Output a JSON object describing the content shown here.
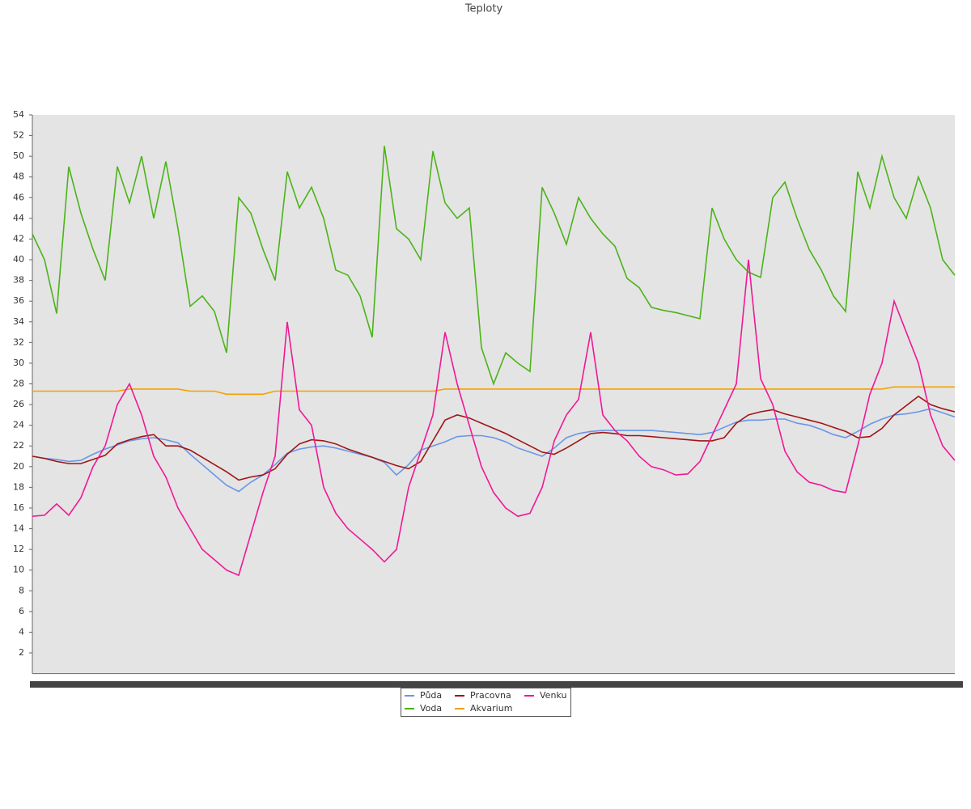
{
  "chart_data": {
    "type": "line",
    "title": "Teploty",
    "categories": [
      null,
      null,
      null,
      null,
      null,
      null,
      null,
      null,
      null,
      null,
      null,
      null,
      null,
      null,
      null,
      null,
      null,
      null,
      null,
      null,
      null,
      null,
      null,
      null,
      null,
      null,
      null,
      null,
      null,
      null,
      null,
      null,
      null,
      null,
      null,
      null,
      null,
      null,
      null,
      null,
      null,
      null,
      null,
      null,
      null,
      null,
      null,
      null,
      null,
      null,
      null,
      null,
      null,
      null,
      null,
      null,
      null,
      null,
      null,
      null,
      null,
      null,
      null,
      null,
      null,
      null,
      null,
      null,
      null,
      null,
      null,
      null,
      null,
      null,
      null,
      null,
      null
    ],
    "ylim": [
      0,
      54
    ],
    "yticks": [
      2,
      4,
      6,
      8,
      10,
      12,
      14,
      16,
      18,
      20,
      22,
      24,
      26,
      28,
      30,
      32,
      34,
      36,
      38,
      40,
      42,
      44,
      46,
      48,
      50,
      52,
      54
    ],
    "grid": false,
    "legend": "bottom",
    "series": [
      {
        "name": "Půda",
        "color": "#6a96e8",
        "values": [
          21,
          20.8,
          20.7,
          20.5,
          20.6,
          21.2,
          21.7,
          22.1,
          22.5,
          22.7,
          22.8,
          22.6,
          22.3,
          21.2,
          20.2,
          19.2,
          18.2,
          17.6,
          18.5,
          19.2,
          20.2,
          21.3,
          21.7,
          21.9,
          22,
          21.8,
          21.5,
          21.2,
          20.9,
          20.4,
          19.2,
          20.2,
          21.6,
          22,
          22.4,
          22.9,
          23,
          23,
          22.8,
          22.4,
          21.8,
          21.4,
          21,
          21.8,
          22.8,
          23.2,
          23.4,
          23.5,
          23.5,
          23.5,
          23.5,
          23.5,
          23.4,
          23.3,
          23.2,
          23.1,
          23.3,
          23.8,
          24.3,
          24.5,
          24.5,
          24.6,
          24.6,
          24.2,
          24,
          23.6,
          23.1,
          22.8,
          23.4,
          24.1,
          24.6,
          25,
          25.1,
          25.3,
          25.6,
          25.2,
          24.8
        ]
      },
      {
        "name": "Voda",
        "color": "#4cb319",
        "values": [
          42.5,
          40,
          34.8,
          49,
          44.5,
          41,
          38,
          49,
          45.5,
          50,
          44,
          49.5,
          43,
          35.5,
          36.5,
          35,
          31,
          46,
          44.5,
          41,
          38,
          48.5,
          45,
          47,
          44,
          39,
          38.5,
          36.5,
          32.5,
          51,
          43,
          42,
          40,
          50.5,
          45.5,
          44,
          45,
          31.5,
          28,
          31,
          30,
          29.2,
          47,
          44.5,
          41.5,
          46,
          44,
          42.5,
          41.3,
          38.2,
          37.3,
          35.4,
          35.1,
          34.9,
          34.6,
          34.3,
          45,
          42,
          40,
          38.8,
          38.3,
          46,
          47.5,
          44,
          41,
          39,
          36.5,
          35,
          48.5,
          45,
          50,
          46,
          44,
          48,
          45,
          40,
          38.5
        ]
      },
      {
        "name": "Pracovna",
        "color": "#a01515",
        "values": [
          21,
          20.8,
          20.5,
          20.3,
          20.3,
          20.7,
          21.1,
          22.2,
          22.6,
          22.9,
          23.1,
          22,
          22,
          21.6,
          20.9,
          20.2,
          19.5,
          18.7,
          19,
          19.2,
          19.8,
          21.2,
          22.2,
          22.6,
          22.5,
          22.2,
          21.7,
          21.3,
          20.9,
          20.5,
          20.1,
          19.8,
          20.5,
          22.5,
          24.5,
          25,
          24.7,
          24.2,
          23.7,
          23.2,
          22.6,
          22,
          21.4,
          21.2,
          21.8,
          22.5,
          23.2,
          23.3,
          23.2,
          23,
          23,
          22.9,
          22.8,
          22.7,
          22.6,
          22.5,
          22.5,
          22.8,
          24.2,
          25,
          25.3,
          25.5,
          25.1,
          24.8,
          24.5,
          24.2,
          23.8,
          23.4,
          22.8,
          22.9,
          23.7,
          25,
          25.9,
          26.8,
          26,
          25.6,
          25.3
        ]
      },
      {
        "name": "Akvarium",
        "color": "#f5a100",
        "values": [
          27.3,
          27.3,
          27.3,
          27.3,
          27.3,
          27.3,
          27.3,
          27.3,
          27.5,
          27.5,
          27.5,
          27.5,
          27.5,
          27.3,
          27.3,
          27.3,
          27,
          27,
          27,
          27,
          27.3,
          27.3,
          27.3,
          27.3,
          27.3,
          27.3,
          27.3,
          27.3,
          27.3,
          27.3,
          27.3,
          27.3,
          27.3,
          27.3,
          27.5,
          27.5,
          27.5,
          27.5,
          27.5,
          27.5,
          27.5,
          27.5,
          27.5,
          27.5,
          27.5,
          27.5,
          27.5,
          27.5,
          27.5,
          27.5,
          27.5,
          27.5,
          27.5,
          27.5,
          27.5,
          27.5,
          27.5,
          27.5,
          27.5,
          27.5,
          27.5,
          27.5,
          27.5,
          27.5,
          27.5,
          27.5,
          27.5,
          27.5,
          27.5,
          27.5,
          27.5,
          27.7,
          27.7,
          27.7,
          27.7,
          27.7,
          27.7
        ]
      },
      {
        "name": "Venku",
        "color": "#f01896",
        "values": [
          15.2,
          15.3,
          16.4,
          15.3,
          17,
          20,
          22,
          26,
          28,
          25,
          21,
          19,
          16,
          14,
          12,
          11,
          10,
          9.5,
          13.5,
          17.5,
          21,
          34,
          25.5,
          24,
          18,
          15.5,
          14,
          13,
          12,
          10.8,
          12,
          18,
          21.5,
          25,
          33,
          28,
          24,
          20,
          17.5,
          16,
          15.2,
          15.5,
          18,
          22.5,
          25,
          26.5,
          33,
          25,
          23.5,
          22.5,
          21,
          20,
          19.7,
          19.2,
          19.3,
          20.5,
          23,
          25.5,
          28,
          40,
          28.5,
          26,
          21.5,
          19.5,
          18.5,
          18.2,
          17.7,
          17.5,
          22,
          27,
          30,
          36,
          33,
          30,
          25,
          22,
          20.6
        ]
      }
    ]
  }
}
